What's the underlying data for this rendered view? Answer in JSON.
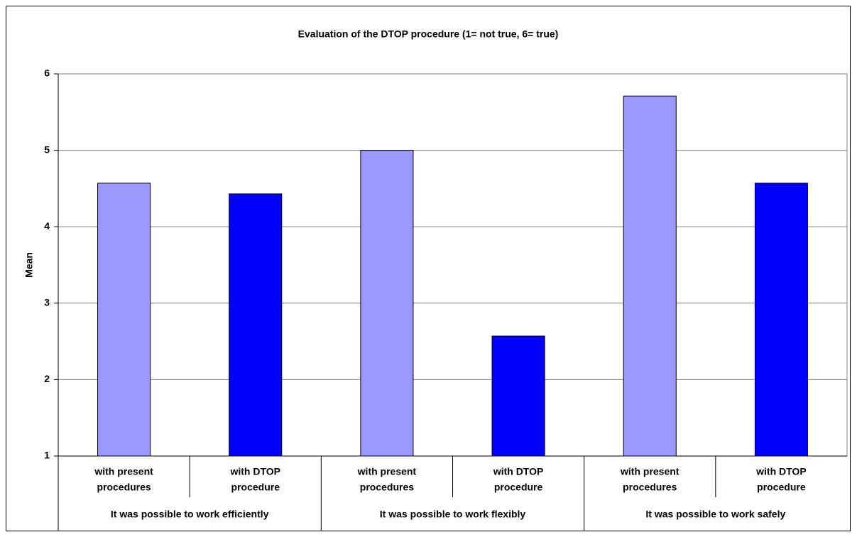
{
  "chart_data": {
    "type": "bar",
    "title": "Evaluation of the DTOP procedure (1= not true, 6= true)",
    "y_label": "Mean",
    "categories": [
      [
        "with present",
        "procedures"
      ],
      [
        "with DTOP",
        "procedure"
      ],
      [
        "with present",
        "procedures"
      ],
      [
        "with DTOP",
        "procedure"
      ],
      [
        "with present",
        "procedures"
      ],
      [
        "with DTOP",
        "procedure"
      ]
    ],
    "groups": [
      "It was possible to work efficiently",
      "It was possible to work flexibly",
      "It was possible to work safely"
    ],
    "values": [
      4.57,
      4.43,
      5.0,
      2.57,
      5.71,
      4.57
    ],
    "colors": [
      "#9999ff",
      "#0000ff",
      "#9999ff",
      "#0000ff",
      "#9999ff",
      "#0000ff"
    ],
    "ylim": [
      1,
      6
    ],
    "yticks": [
      1,
      2,
      3,
      4,
      5,
      6
    ],
    "grid": true
  }
}
